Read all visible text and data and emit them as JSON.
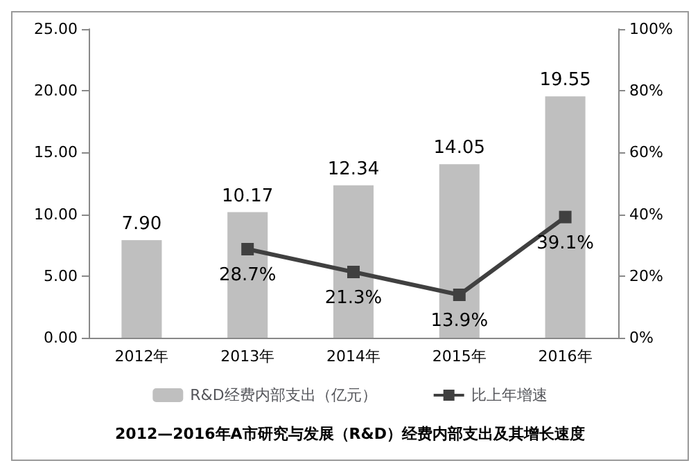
{
  "chart_data": {
    "type": "bar",
    "title": "2012—2016年A市研究与发展（R&D）经费内部支出及其增长速度",
    "categories": [
      "2012年",
      "2013年",
      "2014年",
      "2015年",
      "2016年"
    ],
    "series": [
      {
        "name": "R&D经费内部支出（亿元）",
        "color": "#bfbfbf",
        "values": [
          7.9,
          10.17,
          12.34,
          14.05,
          19.55
        ],
        "value_labels": [
          "7.90",
          "10.17",
          "12.34",
          "14.05",
          "19.55"
        ]
      },
      {
        "name": "比上年增速",
        "type": "line",
        "axis": "y2",
        "color": "#404040",
        "marker": "square",
        "line_style": "solid",
        "values": [
          null,
          28.7,
          21.3,
          13.9,
          39.1
        ],
        "value_labels": [
          null,
          "28.7%",
          "21.3%",
          "13.9%",
          "39.1%"
        ]
      }
    ],
    "ylim": [
      0,
      25
    ],
    "yticks": [
      {
        "value": 0,
        "label": "0.00"
      },
      {
        "value": 5,
        "label": "5.00"
      },
      {
        "value": 10,
        "label": "10.00"
      },
      {
        "value": 15,
        "label": "15.00"
      },
      {
        "value": 20,
        "label": "20.00"
      },
      {
        "value": 25,
        "label": "25.00"
      }
    ],
    "y2lim": [
      0,
      100
    ],
    "y2ticks": [
      {
        "value": 0,
        "label": "0%"
      },
      {
        "value": 20,
        "label": "20%"
      },
      {
        "value": 40,
        "label": "40%"
      },
      {
        "value": 60,
        "label": "60%"
      },
      {
        "value": 80,
        "label": "80%"
      },
      {
        "value": 100,
        "label": "100%"
      }
    ],
    "grid": false,
    "legend": "bottom"
  }
}
